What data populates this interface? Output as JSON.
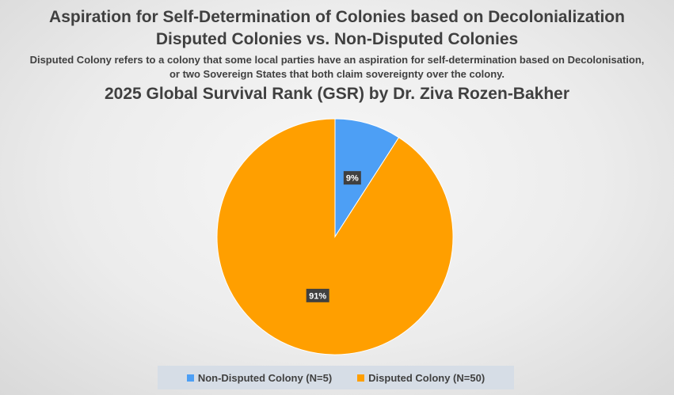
{
  "titles": {
    "line1": "Aspiration for Self-Determination of Colonies based on Decolonialization",
    "line2": "Disputed Colonies vs. Non-Disputed Colonies",
    "subtitle1": "Disputed Colony refers to a colony that some local parties have an aspiration for self-determination based on Decolonisation,",
    "subtitle2": "or two Sovereign States that both claim sovereignty over the colony.",
    "line3": "2025 Global Survival Rank (GSR) by Dr. Ziva Rozen-Bakher"
  },
  "chart_data": {
    "type": "pie",
    "title": "Aspiration for Self-Determination of Colonies based on Decolonialization",
    "slices": [
      {
        "label": "Non-Disputed Colony (N=5)",
        "value": 5,
        "percent_label": "9%",
        "color": "#4d9ff5"
      },
      {
        "label": "Disputed Colony (N=50)",
        "value": 50,
        "percent_label": "91%",
        "color": "#ff9f00"
      }
    ],
    "legend_position": "bottom",
    "data_labels": true
  }
}
